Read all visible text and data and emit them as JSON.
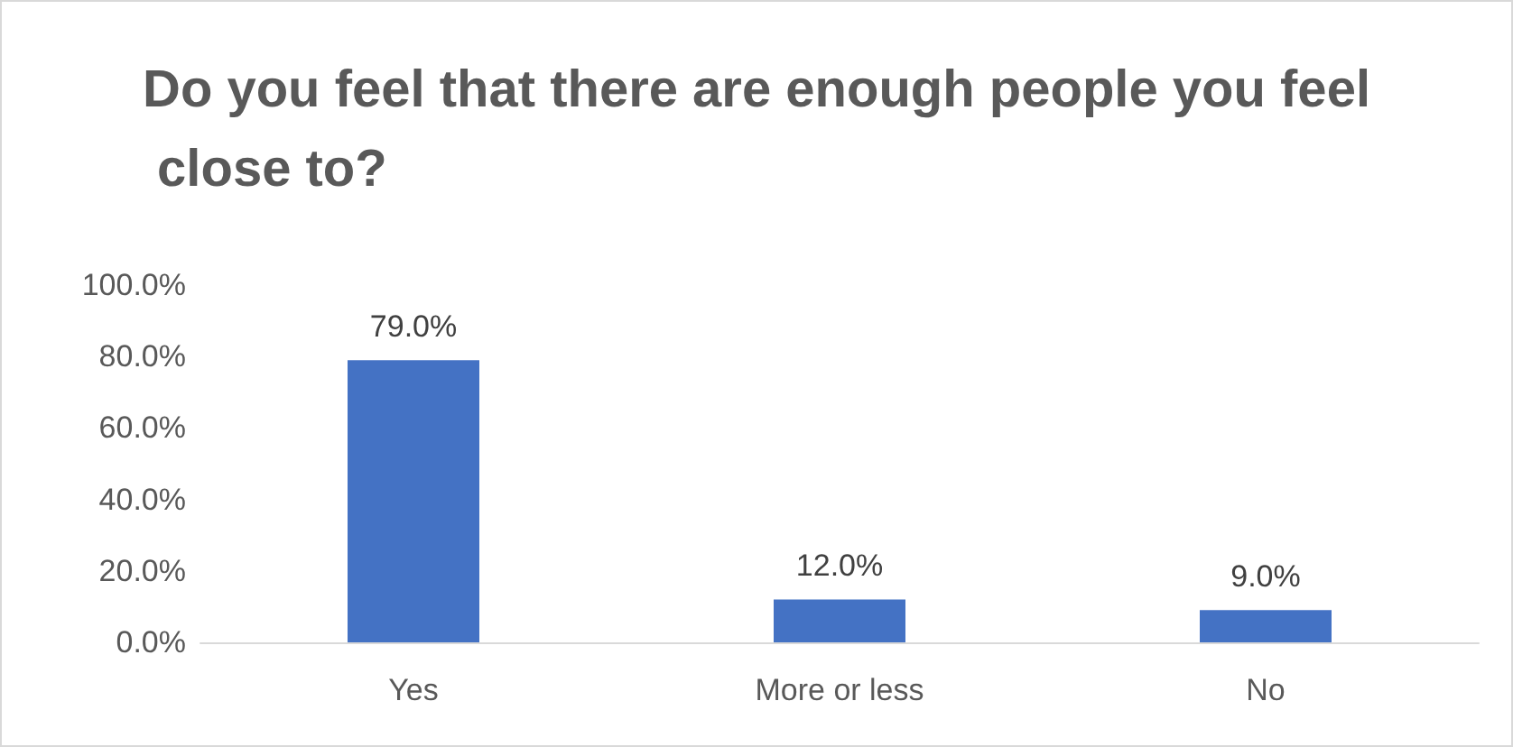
{
  "chart_data": {
    "type": "bar",
    "title": "Do you feel that there are enough people you feel close to?",
    "categories": [
      "Yes",
      "More or less",
      "No"
    ],
    "values": [
      79,
      12,
      9
    ],
    "value_labels": [
      "79.0%",
      "12.0%",
      "9.0%"
    ],
    "color": "#4472c4",
    "ylim": [
      0,
      100
    ],
    "yticks": [
      {
        "value": 0,
        "label": "0.0%"
      },
      {
        "value": 20,
        "label": "20.0%"
      },
      {
        "value": 40,
        "label": "40.0%"
      },
      {
        "value": 60,
        "label": "60.0%"
      },
      {
        "value": 80,
        "label": "80.0%"
      },
      {
        "value": 100,
        "label": "100.0%"
      }
    ]
  }
}
